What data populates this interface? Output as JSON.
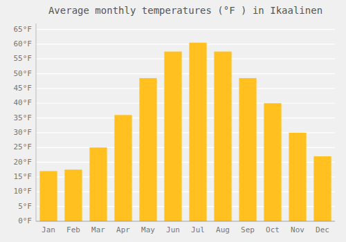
{
  "chart_data": {
    "type": "bar",
    "title": "Average monthly temperatures (°F ) in Ikaalinen",
    "categories": [
      "Jan",
      "Feb",
      "Mar",
      "Apr",
      "May",
      "Jun",
      "Jul",
      "Aug",
      "Sep",
      "Oct",
      "Nov",
      "Dec"
    ],
    "values": [
      17,
      17.5,
      25,
      36,
      48.5,
      57.5,
      60.5,
      57.5,
      48.5,
      40,
      30,
      22
    ],
    "color": "#FFC020",
    "ylim": [
      0,
      67
    ],
    "yticks": [
      {
        "value": 0,
        "label": "0°F"
      },
      {
        "value": 5,
        "label": "5°F"
      },
      {
        "value": 10,
        "label": "10°F"
      },
      {
        "value": 15,
        "label": "15°F"
      },
      {
        "value": 20,
        "label": "20°F"
      },
      {
        "value": 25,
        "label": "25°F"
      },
      {
        "value": 30,
        "label": "30°F"
      },
      {
        "value": 35,
        "label": "35°F"
      },
      {
        "value": 40,
        "label": "40°F"
      },
      {
        "value": 45,
        "label": "45°F"
      },
      {
        "value": 50,
        "label": "50°F"
      },
      {
        "value": 55,
        "label": "55°F"
      },
      {
        "value": 60,
        "label": "60°F"
      },
      {
        "value": 65,
        "label": "65°F"
      }
    ],
    "grid": true
  }
}
